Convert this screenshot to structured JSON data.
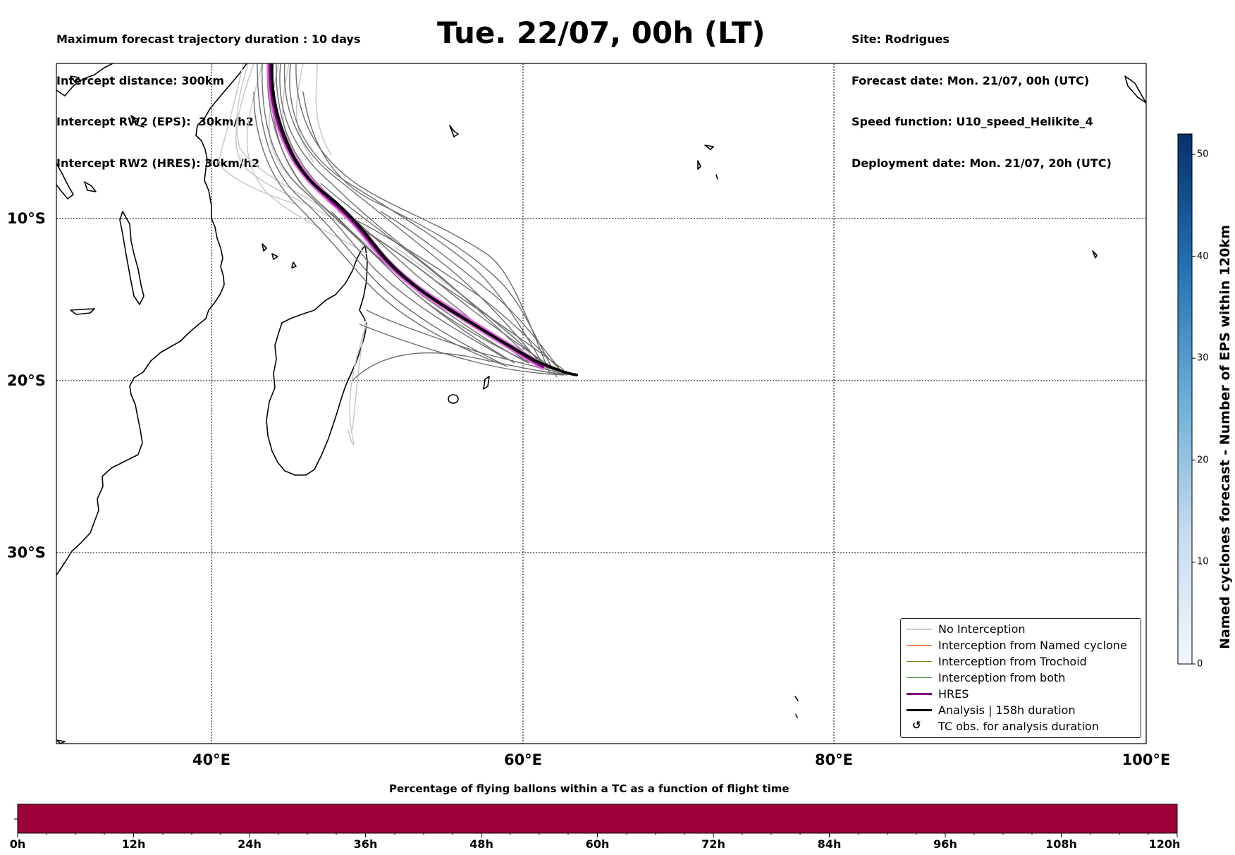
{
  "header": {
    "left_lines": [
      "Maximum forecast trajectory duration : 10 days",
      "Intercept distance: 300km",
      "Intercept RW2 (EPS):  30km/h2",
      "Intercept RW2 (HRES): 30km/h2"
    ],
    "right_lines": [
      "Site: Rodrigues",
      "Forecast date: Mon. 21/07, 00h (UTC)",
      "Speed function: U10_speed_Helikite_4",
      "Deployment date: Mon. 21/07, 20h (UTC)"
    ],
    "title": "Tue. 22/07, 00h (LT)"
  },
  "map": {
    "lon_labels": [
      "40°E",
      "60°E",
      "80°E",
      "100°E"
    ],
    "lat_labels": [
      "10°S",
      "20°S",
      "30°S"
    ],
    "colors": {
      "no_interception": "#6e6e6e",
      "light_track": "#c8c8c8",
      "hres": "#8b0a8b",
      "hres_glow": "#e56ee5",
      "analysis": "#000000"
    }
  },
  "legend": {
    "items": [
      {
        "label": "No Interception",
        "color": "#808080",
        "width": 1.2
      },
      {
        "label": "Interception from Named cyclone",
        "color": "#ff5a1a",
        "width": 1.2
      },
      {
        "label": "Interception from Trochoid",
        "color": "#808000",
        "width": 1.2
      },
      {
        "label": "Interception from both",
        "color": "#1a8a1a",
        "width": 1.2
      },
      {
        "label": "HRES",
        "color": "#800080",
        "width": 3.5
      },
      {
        "label": "Analysis | 158h duration",
        "color": "#000000",
        "width": 3.5
      },
      {
        "label": "TC obs. for analysis duration",
        "symbol": "↺"
      }
    ]
  },
  "colorbar": {
    "label": "Named cyclones forecast - Number of EPS within 120km",
    "ticks": [
      "0",
      "10",
      "20",
      "30",
      "40",
      "50"
    ],
    "min": 0,
    "max": 52,
    "color_low": "#f2f7fd",
    "color_high": "#08306b"
  },
  "bottom_bar": {
    "title": "Percentage of flying ballons within a TC as a function of flight time",
    "ticks": [
      "0h",
      "12h",
      "24h",
      "36h",
      "48h",
      "60h",
      "72h",
      "84h",
      "96h",
      "108h",
      "120h"
    ],
    "color": "#9e003a"
  }
}
